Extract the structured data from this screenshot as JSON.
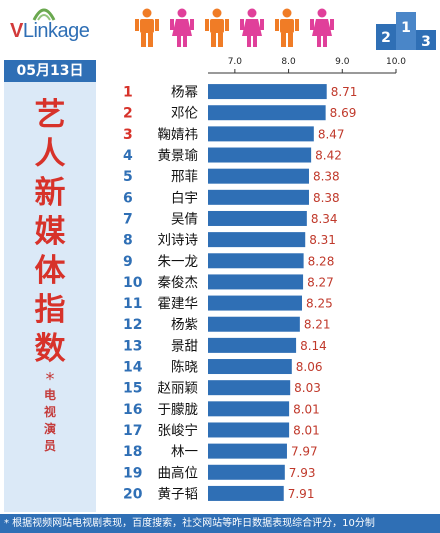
{
  "header": {
    "logo_v": "V",
    "logo_rest": "Linkage",
    "podium_digits": [
      "2",
      "1",
      "3"
    ],
    "colors": {
      "male": "#f07c26",
      "female": "#e0409a",
      "brand_blue": "#2f6fb5",
      "accent_red": "#d7322a"
    }
  },
  "left_panel": {
    "date": "05月13日",
    "title_chars": [
      "艺",
      "人",
      "新",
      "媒",
      "体",
      "指",
      "数"
    ],
    "star": "*",
    "subtitle_chars": [
      "电",
      "视",
      "演",
      "员"
    ]
  },
  "footer": {
    "note": "* 根据视频网站电视剧表现，百度搜索，社交网站等昨日数据表现综合评分，10分制"
  },
  "chart_data": {
    "type": "bar",
    "orientation": "horizontal",
    "xlim": [
      6.5,
      10.0
    ],
    "ticks": [
      "7.0",
      "8.0",
      "9.0",
      "10.0"
    ],
    "tick_values": [
      7.0,
      8.0,
      9.0,
      10.0
    ],
    "bar_color": "#2f6fb5",
    "rank_colors": {
      "top3": "#d7322a",
      "rest": "#2f6fb5"
    },
    "ranks": [
      "1",
      "2",
      "3",
      "4",
      "5",
      "6",
      "7",
      "8",
      "9",
      "10",
      "11",
      "12",
      "13",
      "14",
      "15",
      "16",
      "17",
      "18",
      "19",
      "20"
    ],
    "categories": [
      "杨幂",
      "邓伦",
      "鞠婧祎",
      "黄景瑜",
      "邢菲",
      "白宇",
      "吴倩",
      "刘诗诗",
      "朱一龙",
      "秦俊杰",
      "霍建华",
      "杨紫",
      "景甜",
      "陈晓",
      "赵丽颖",
      "于朦胧",
      "张峻宁",
      "林一",
      "曲高位",
      "黄子韬"
    ],
    "values": [
      8.71,
      8.69,
      8.47,
      8.42,
      8.38,
      8.38,
      8.34,
      8.31,
      8.28,
      8.27,
      8.25,
      8.21,
      8.14,
      8.06,
      8.03,
      8.01,
      8.01,
      7.97,
      7.93,
      7.91
    ],
    "value_labels": [
      "8.71",
      "8.69",
      "8.47",
      "8.42",
      "8.38",
      "8.38",
      "8.34",
      "8.31",
      "8.28",
      "8.27",
      "8.25",
      "8.21",
      "8.14",
      "8.06",
      "8.03",
      "8.01",
      "8.01",
      "7.97",
      "7.93",
      "7.91"
    ]
  }
}
